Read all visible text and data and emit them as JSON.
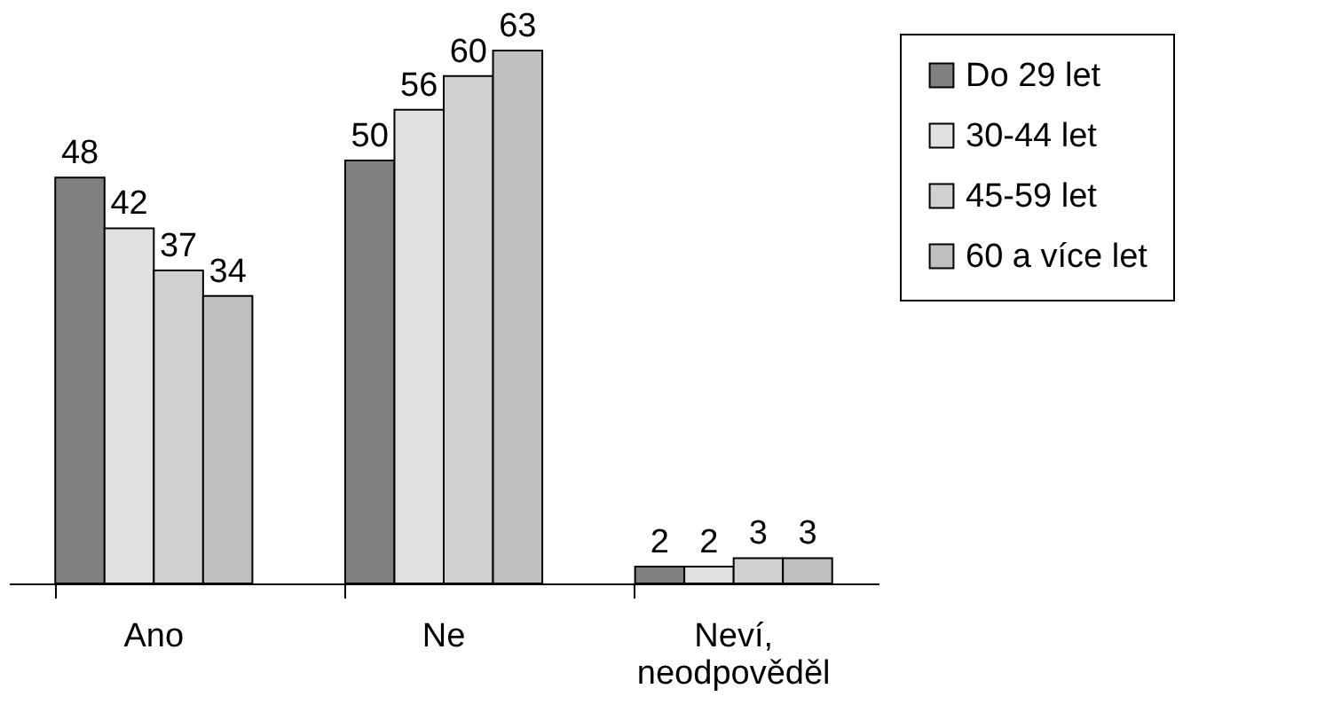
{
  "chart_data": {
    "type": "bar",
    "categories": [
      "Ano",
      "Ne",
      "Neví, neodpověděl"
    ],
    "series": [
      {
        "name": "Do 29 let",
        "color": "#808080",
        "values": [
          48,
          50,
          2
        ]
      },
      {
        "name": "30-44 let",
        "color": "#e0e0e0",
        "values": [
          42,
          56,
          2
        ]
      },
      {
        "name": "45-59 let",
        "color": "#d0d0d0",
        "values": [
          37,
          60,
          3
        ]
      },
      {
        "name": "60 a více let",
        "color": "#c0c0c0",
        "values": [
          34,
          63,
          3
        ]
      }
    ],
    "data_labels": true,
    "legend": "top right",
    "grid": false
  }
}
